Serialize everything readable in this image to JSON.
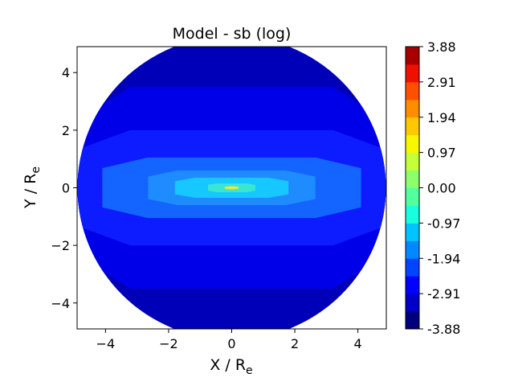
{
  "chart_data": {
    "type": "contour",
    "title": "Model - sb (log)",
    "xlabel": {
      "main": "X / R",
      "sub": "e"
    },
    "ylabel": {
      "main": "Y / R",
      "sub": "e"
    },
    "xlim": [
      -4.9,
      4.9
    ],
    "ylim": [
      -4.9,
      4.9
    ],
    "x_ticks": [
      -4,
      -2,
      0,
      2,
      4
    ],
    "y_ticks": [
      -4,
      -2,
      0,
      2,
      4
    ],
    "x_tick_labels": [
      "−4",
      "−2",
      "0",
      "2",
      "4"
    ],
    "y_tick_labels": [
      "−4",
      "−2",
      "0",
      "2",
      "4"
    ],
    "contour_levels": [
      {
        "level": -3.4,
        "color": "#0000b8",
        "hw": 5.0,
        "hh": 5.0
      },
      {
        "level": -2.9,
        "color": "#0000e8",
        "hw": 4.95,
        "hh": 3.5
      },
      {
        "level": -2.4,
        "color": "#0c1cff",
        "hw": 4.95,
        "hh": 2.0
      },
      {
        "level": -1.9,
        "color": "#1464ff",
        "hw": 4.1,
        "hh": 1.05
      },
      {
        "level": -1.45,
        "color": "#1e8cff",
        "hw": 2.65,
        "hh": 0.6
      },
      {
        "level": -0.95,
        "color": "#16c8ff",
        "hw": 1.8,
        "hh": 0.35
      },
      {
        "level": -0.45,
        "color": "#3ae6d2",
        "hw": 0.75,
        "hh": 0.15
      },
      {
        "level": 0.0,
        "color": "#a8ee48",
        "hw": 0.22,
        "hh": 0.045
      }
    ],
    "colorbar": {
      "tick_labels": [
        "3.88",
        "2.91",
        "1.94",
        "0.97",
        "0.00",
        "-0.97",
        "-1.94",
        "-2.91",
        "-3.88"
      ],
      "colors": [
        "#00007f",
        "#0000c8",
        "#0000ff",
        "#0044ff",
        "#0088ff",
        "#00c4ff",
        "#18ffe0",
        "#52ff9e",
        "#8cff6b",
        "#c4ff3a",
        "#f7f700",
        "#ffc800",
        "#ff8d00",
        "#ff4f00",
        "#ee1100",
        "#a80000"
      ]
    }
  }
}
